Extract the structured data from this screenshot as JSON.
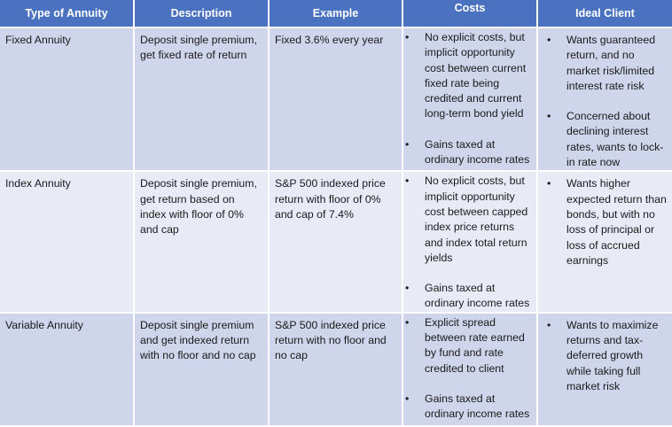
{
  "headers": {
    "type": "Type of Annuity",
    "description": "Description",
    "example": "Example",
    "costs": "Costs",
    "ideal_client": "Ideal Client"
  },
  "rows": [
    {
      "type": "Fixed Annuity",
      "description": "Deposit single premium, get fixed rate of return",
      "example": "Fixed 3.6% every year",
      "costs": [
        "No explicit costs, but implicit opportunity cost between current fixed rate being credited and current long-term bond yield",
        "Gains taxed at ordinary income rates"
      ],
      "ideal_client": [
        "Wants guaranteed return, and no market risk/limited interest rate risk",
        "Concerned about declining interest rates, wants to lock-in rate now"
      ]
    },
    {
      "type": "Index Annuity",
      "description": "Deposit single premium, get return based on index with floor of 0% and cap",
      "example": "S&P 500 indexed price return with floor of 0% and cap of 7.4%",
      "costs": [
        "No explicit costs, but implicit opportunity cost between capped index price returns and index total return yields",
        "Gains taxed at ordinary income rates"
      ],
      "ideal_client": [
        "Wants higher expected return than bonds, but with no loss of principal or loss of accrued earnings"
      ]
    },
    {
      "type": "Variable Annuity",
      "description": "Deposit single premium and get indexed return with no floor and no cap",
      "example": "S&P 500 indexed price return with no floor and no cap",
      "costs": [
        "Explicit spread between rate earned by fund and rate credited to client",
        "Gains taxed at ordinary income rates"
      ],
      "ideal_client": [
        "Wants to maximize returns and tax-deferred growth while taking full market risk"
      ]
    }
  ]
}
